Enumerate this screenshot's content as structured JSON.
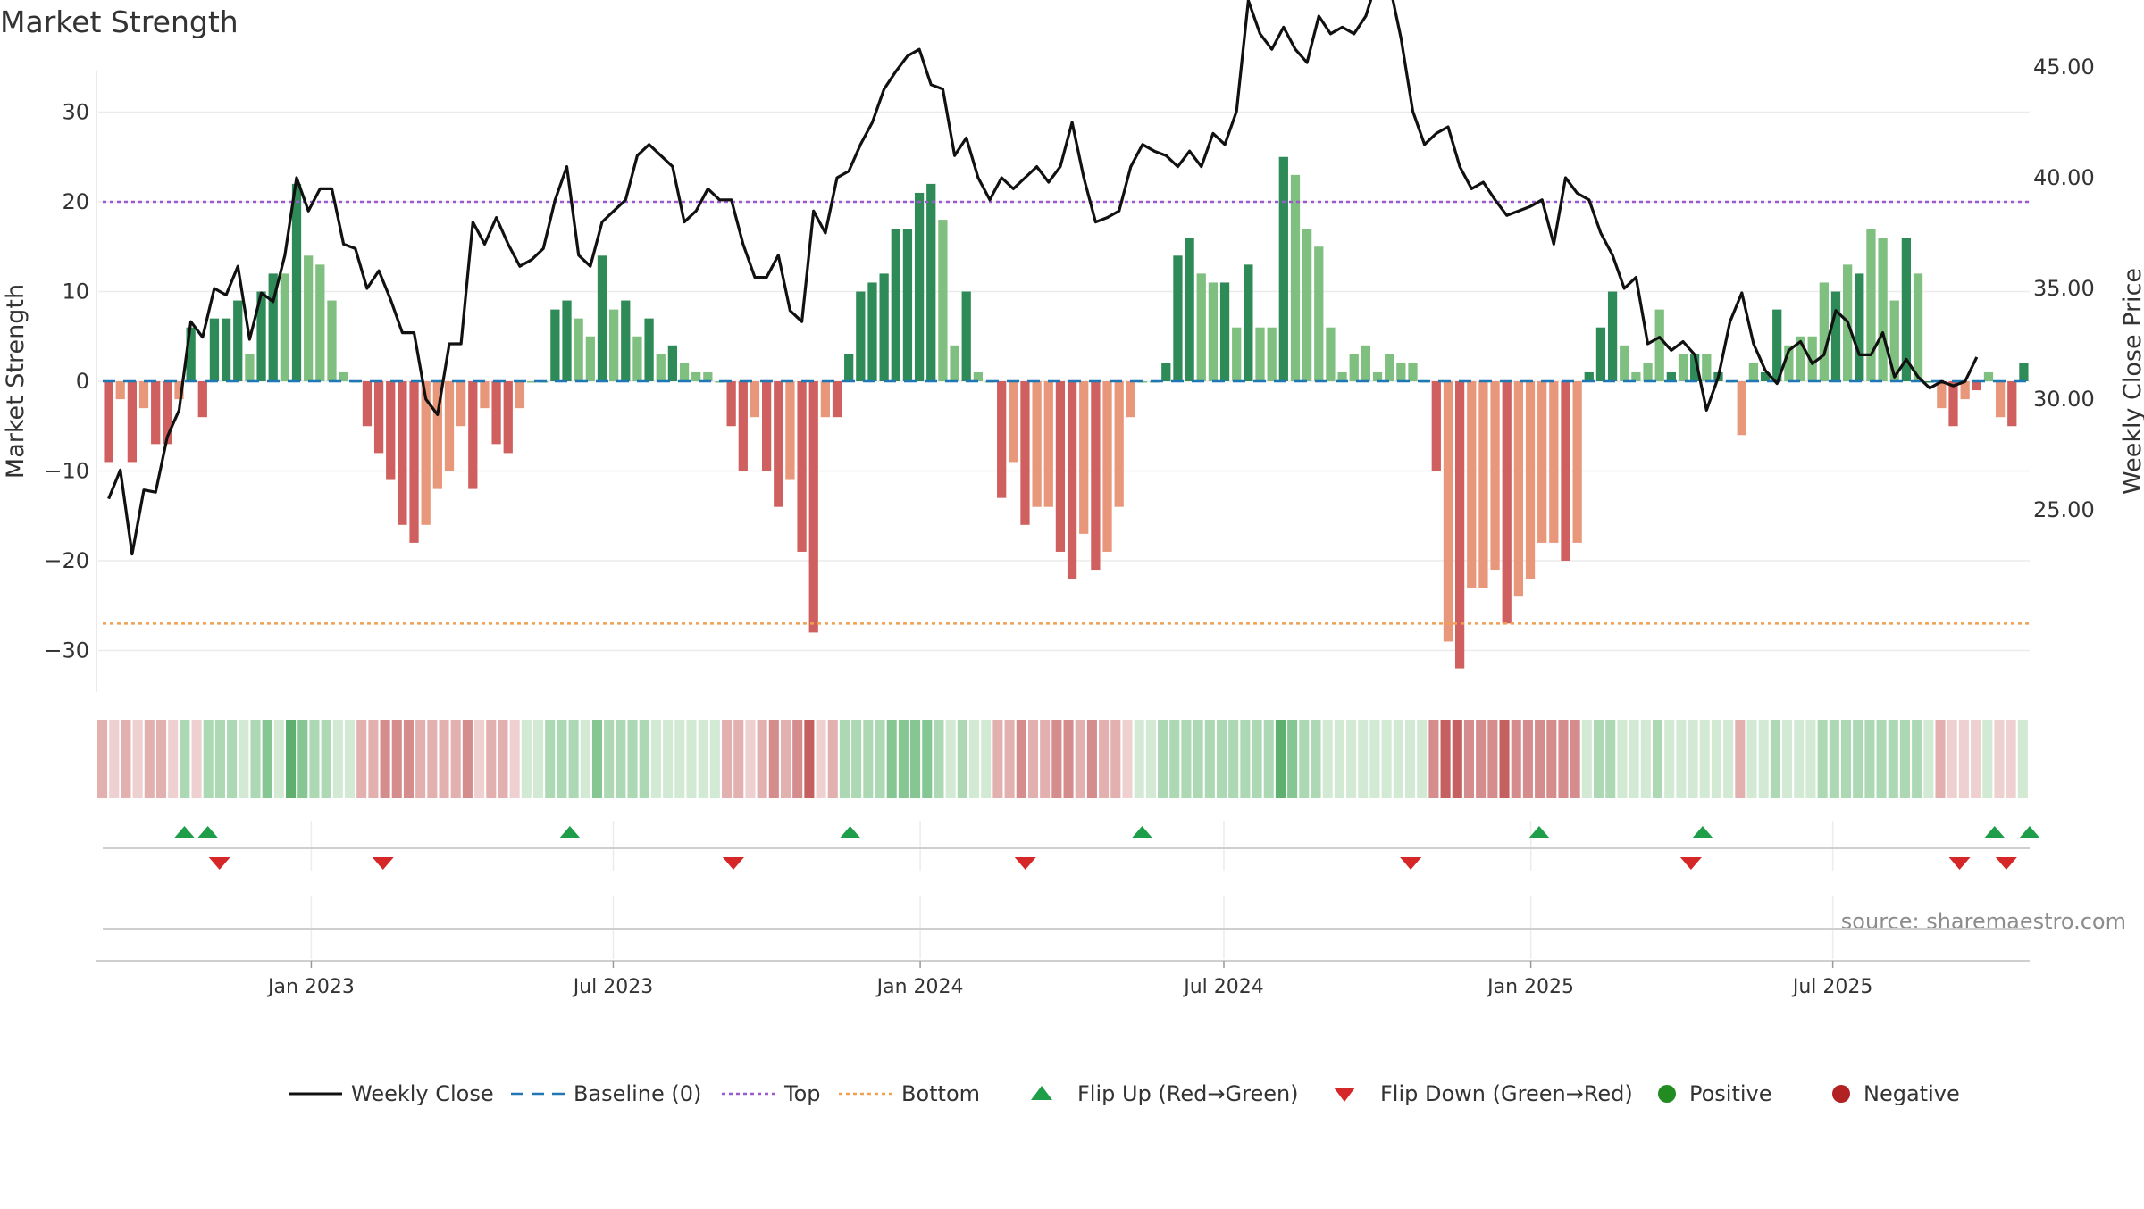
{
  "colors": {
    "strong_green": "#2e8b57",
    "light_green": "#7fbf7f",
    "strong_red": "#d0605f",
    "light_red": "#e8977a",
    "line": "#111111",
    "baseline": "#1f77b4",
    "top": "#9b59d0",
    "bottom": "#f0a050",
    "grid": "#ebebeb",
    "flip_up": "#1f9e4a",
    "flip_down": "#d62728",
    "positive": "#228b22",
    "negative": "#b22222",
    "text": "#333333",
    "source": "#8c8c8c"
  },
  "chart_data": {
    "type": "bar",
    "title": "Market Strength",
    "ylabel": "Market Strength",
    "y2label": "Weekly Close Price",
    "ylim": [
      -34,
      35
    ],
    "y2lim": [
      22.0,
      50.0
    ],
    "yticks": [
      {
        "v": 30,
        "label": "30"
      },
      {
        "v": 20,
        "label": "20"
      },
      {
        "v": 10,
        "label": "10"
      },
      {
        "v": 0,
        "label": "0"
      },
      {
        "v": -10,
        "label": "−10"
      },
      {
        "v": -20,
        "label": "−20"
      },
      {
        "v": -30,
        "label": "−30"
      }
    ],
    "y2ticks": [
      "45.00",
      "40.00",
      "35.00",
      "30.00",
      "25.00"
    ],
    "x_start": "2022-08-29",
    "x_end": "2025-10-27",
    "xticks": [
      {
        "date": "2023-01-01",
        "label": "Jan 2023"
      },
      {
        "date": "2023-07-01",
        "label": "Jul 2023"
      },
      {
        "date": "2024-01-01",
        "label": "Jan 2024"
      },
      {
        "date": "2024-07-01",
        "label": "Jul 2024"
      },
      {
        "date": "2025-01-01",
        "label": "Jan 2025"
      },
      {
        "date": "2025-07-01",
        "label": "Jul 2025"
      }
    ],
    "top_level": 20,
    "bottom_level": -27,
    "strength_values": [
      -9,
      -2,
      -9,
      -3,
      -7,
      -7,
      -2,
      6,
      -4,
      7,
      7,
      9,
      3,
      10,
      12,
      12,
      22,
      14,
      13,
      9,
      1,
      0,
      -5,
      -8,
      -11,
      -16,
      -18,
      -16,
      -12,
      -10,
      -5,
      -12,
      -3,
      -7,
      -8,
      -3,
      0,
      0,
      8,
      9,
      7,
      5,
      14,
      8,
      9,
      5,
      7,
      3,
      4,
      2,
      1,
      1,
      0,
      -5,
      -10,
      -4,
      -10,
      -14,
      -11,
      -19,
      -28,
      -4,
      -4,
      3,
      10,
      11,
      12,
      17,
      17,
      21,
      22,
      18,
      4,
      10,
      1,
      0,
      -13,
      -9,
      -16,
      -14,
      -14,
      -19,
      -22,
      -17,
      -21,
      -19,
      -14,
      -4,
      0,
      0,
      2,
      14,
      16,
      12,
      11,
      11,
      6,
      13,
      6,
      6,
      25,
      23,
      17,
      15,
      6,
      1,
      3,
      4,
      1,
      3,
      2,
      2,
      0,
      -10,
      -29,
      -32,
      -23,
      -23,
      -21,
      -27,
      -24,
      -22,
      -18,
      -18,
      -20,
      -18,
      1,
      6,
      10,
      4,
      1,
      2,
      8,
      1,
      3,
      3,
      3,
      1,
      0,
      -6,
      2,
      1,
      8,
      4,
      5,
      5,
      11,
      10,
      13,
      12,
      17,
      16,
      9,
      16,
      12,
      0,
      -3,
      -5,
      -2,
      -1,
      1,
      -4,
      -5,
      2
    ],
    "strength_shade": [
      1,
      0,
      1,
      0,
      1,
      1,
      0,
      1,
      1,
      1,
      1,
      1,
      0,
      1,
      1,
      0,
      1,
      0,
      0,
      0,
      0,
      0,
      1,
      1,
      1,
      1,
      1,
      0,
      0,
      0,
      0,
      1,
      0,
      1,
      1,
      0,
      0,
      0,
      1,
      1,
      0,
      0,
      1,
      0,
      1,
      0,
      1,
      0,
      1,
      0,
      0,
      0,
      0,
      1,
      1,
      0,
      1,
      1,
      0,
      1,
      1,
      0,
      1,
      1,
      1,
      1,
      1,
      1,
      1,
      1,
      1,
      0,
      0,
      1,
      0,
      0,
      1,
      0,
      1,
      0,
      0,
      1,
      1,
      0,
      1,
      0,
      0,
      0,
      0,
      0,
      1,
      1,
      1,
      0,
      0,
      1,
      0,
      1,
      0,
      0,
      1,
      0,
      0,
      0,
      0,
      0,
      0,
      0,
      0,
      0,
      0,
      0,
      0,
      1,
      0,
      1,
      0,
      0,
      0,
      1,
      0,
      0,
      0,
      0,
      1,
      0,
      1,
      1,
      1,
      0,
      0,
      0,
      0,
      1,
      0,
      1,
      0,
      1,
      0,
      0,
      0,
      1,
      1,
      0,
      0,
      0,
      0,
      1,
      0,
      1,
      0,
      0,
      0,
      1,
      0,
      1,
      0,
      1,
      0,
      1,
      0,
      0,
      1,
      1,
      1,
      1
    ],
    "weekly_close": [
      25.5,
      26.8,
      23.0,
      25.9,
      25.8,
      28.3,
      29.5,
      33.5,
      32.8,
      35.0,
      34.7,
      36.0,
      32.7,
      34.8,
      34.4,
      36.5,
      40.0,
      38.5,
      39.5,
      39.5,
      37.0,
      36.8,
      35.0,
      35.8,
      34.5,
      33.0,
      33.0,
      30.0,
      29.3,
      32.5,
      32.5,
      38.0,
      37.0,
      38.2,
      37.0,
      36.0,
      36.3,
      36.8,
      39.0,
      40.5,
      36.5,
      36.0,
      38.0,
      38.5,
      39.0,
      41.0,
      41.5,
      41.0,
      40.5,
      38.0,
      38.5,
      39.5,
      39.0,
      39.0,
      37.0,
      35.5,
      35.5,
      36.5,
      34.0,
      33.5,
      38.5,
      37.5,
      40.0,
      40.3,
      41.5,
      42.5,
      44.0,
      44.8,
      45.5,
      45.8,
      44.2,
      44.0,
      41.0,
      41.8,
      40.0,
      39.0,
      40.0,
      39.5,
      40.0,
      40.5,
      39.8,
      40.5,
      42.5,
      40.0,
      38.0,
      38.2,
      38.5,
      40.5,
      41.5,
      41.2,
      41.0,
      40.5,
      41.2,
      40.5,
      42.0,
      41.5,
      43.0,
      48.0,
      46.5,
      45.8,
      46.8,
      45.8,
      45.2,
      47.3,
      46.5,
      46.8,
      46.5,
      47.3,
      49.0,
      48.8,
      46.3,
      43.0,
      41.5,
      42.0,
      42.3,
      40.5,
      39.5,
      39.8,
      39.0,
      38.3,
      38.5,
      38.7,
      39.0,
      37.0,
      40.0,
      39.3,
      39.0,
      37.5,
      36.5,
      35.0,
      35.5,
      32.5,
      32.8,
      32.2,
      32.6,
      32.0,
      29.5,
      31.0,
      33.5,
      34.8,
      32.5,
      31.3,
      30.7,
      32.2,
      32.6,
      31.6,
      32.0,
      34.0,
      33.5,
      32.0,
      32.0,
      33.0,
      31.0,
      31.8,
      31.0,
      30.5,
      30.8,
      30.6,
      30.8,
      31.9
    ],
    "heat_intensity": [
      2,
      1,
      2,
      1,
      2,
      2,
      1,
      2,
      1,
      2,
      2,
      2,
      1,
      2,
      3,
      1,
      4,
      3,
      2,
      2,
      1,
      1,
      2,
      2,
      3,
      3,
      3,
      2,
      2,
      2,
      2,
      3,
      1,
      2,
      2,
      1,
      1,
      1,
      2,
      2,
      2,
      1,
      3,
      2,
      2,
      2,
      2,
      1,
      1,
      1,
      1,
      1,
      1,
      2,
      2,
      1,
      2,
      3,
      2,
      3,
      4,
      1,
      2,
      2,
      2,
      2,
      2,
      3,
      3,
      3,
      3,
      2,
      1,
      2,
      1,
      1,
      2,
      2,
      3,
      2,
      2,
      3,
      3,
      2,
      3,
      2,
      2,
      1,
      1,
      1,
      2,
      2,
      2,
      2,
      2,
      2,
      2,
      2,
      2,
      2,
      4,
      3,
      2,
      2,
      1,
      1,
      1,
      1,
      1,
      1,
      1,
      1,
      1,
      3,
      4,
      4,
      3,
      3,
      3,
      4,
      3,
      3,
      3,
      3,
      3,
      3,
      1,
      2,
      2,
      1,
      1,
      1,
      2,
      1,
      1,
      1,
      1,
      1,
      1,
      2,
      1,
      1,
      2,
      1,
      1,
      1,
      2,
      2,
      2,
      2,
      2,
      2,
      2,
      2,
      2,
      1,
      2,
      1,
      1,
      1,
      1,
      1,
      1,
      1
    ],
    "flip_up_dates": [
      "2022-10-17",
      "2022-10-31",
      "2023-06-05",
      "2023-11-20",
      "2024-05-13",
      "2025-01-06",
      "2025-04-14",
      "2025-10-06",
      "2025-10-27"
    ],
    "flip_down_dates": [
      "2022-11-07",
      "2023-02-13",
      "2023-09-11",
      "2024-03-04",
      "2024-10-21",
      "2025-04-07",
      "2025-09-15",
      "2025-10-13"
    ],
    "source": "source: sharemaestro.com",
    "legend": [
      {
        "key": "line",
        "label": "Weekly Close"
      },
      {
        "key": "baseline",
        "label": "Baseline (0)"
      },
      {
        "key": "top",
        "label": "Top"
      },
      {
        "key": "bottom",
        "label": "Bottom"
      },
      {
        "key": "flip_up",
        "label": "Flip Up (Red→Green)"
      },
      {
        "key": "flip_down",
        "label": "Flip Down (Green→Red)"
      },
      {
        "key": "positive",
        "label": "Positive"
      },
      {
        "key": "negative",
        "label": "Negative"
      }
    ]
  }
}
